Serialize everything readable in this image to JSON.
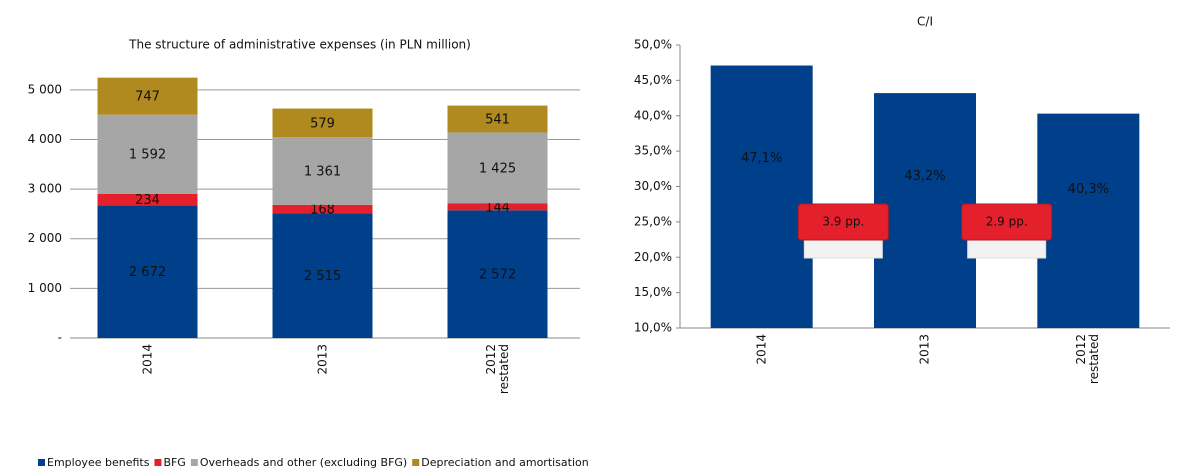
{
  "chart_data": [
    {
      "type": "bar",
      "stacked": true,
      "title": "The structure of administrative expenses (in PLN million)",
      "categories": [
        "2014",
        "2013",
        "2012 restated"
      ],
      "series": [
        {
          "name": "Employee benefits",
          "color": "#003f8a",
          "values": [
            2672,
            2515,
            2572
          ],
          "value_labels": [
            "2 672",
            "2 515",
            "2 572"
          ]
        },
        {
          "name": "BFG",
          "color": "#e3202c",
          "values": [
            234,
            168,
            144
          ]
        },
        {
          "name": "Overheads and other (excluding BFG)",
          "color": "#a6a6a6",
          "values": [
            1592,
            1361,
            1425
          ],
          "value_labels": [
            "1 592",
            "1 361",
            "1 425"
          ]
        },
        {
          "name": "Depreciation and amortisation",
          "color": "#b08a1e",
          "values": [
            747,
            579,
            541
          ]
        }
      ],
      "ylim": [
        0,
        5500
      ],
      "yticks": [
        {
          "value": 0,
          "label": "-"
        },
        {
          "value": 1000,
          "label": "1 000"
        },
        {
          "value": 2000,
          "label": "2 000"
        },
        {
          "value": 3000,
          "label": "3 000"
        },
        {
          "value": 4000,
          "label": "4 000"
        },
        {
          "value": 5000,
          "label": "5 000"
        }
      ],
      "grid": true,
      "legend": "bottom"
    },
    {
      "type": "bar",
      "title": "C/I",
      "categories": [
        "2014",
        "2013",
        "2012 restated"
      ],
      "series": [
        {
          "color": "#003f8a",
          "values": [
            47.1,
            43.2,
            40.3
          ],
          "value_labels": [
            "47,1%",
            "43,2%",
            "40,3%"
          ]
        }
      ],
      "ylim": [
        10,
        50
      ],
      "yticks": [
        {
          "value": 10,
          "label": "10,0%"
        },
        {
          "value": 15,
          "label": "15,0%"
        },
        {
          "value": 20,
          "label": "20,0%"
        },
        {
          "value": 25,
          "label": "25,0%"
        },
        {
          "value": 30,
          "label": "30,0%"
        },
        {
          "value": 35,
          "label": "35,0%"
        },
        {
          "value": 40,
          "label": "40,0%"
        },
        {
          "value": 45,
          "label": "45,0%"
        },
        {
          "value": 50,
          "label": "50,0%"
        }
      ],
      "grid": false,
      "annotations": [
        "3.9 pp.",
        "2.9 pp."
      ]
    }
  ]
}
